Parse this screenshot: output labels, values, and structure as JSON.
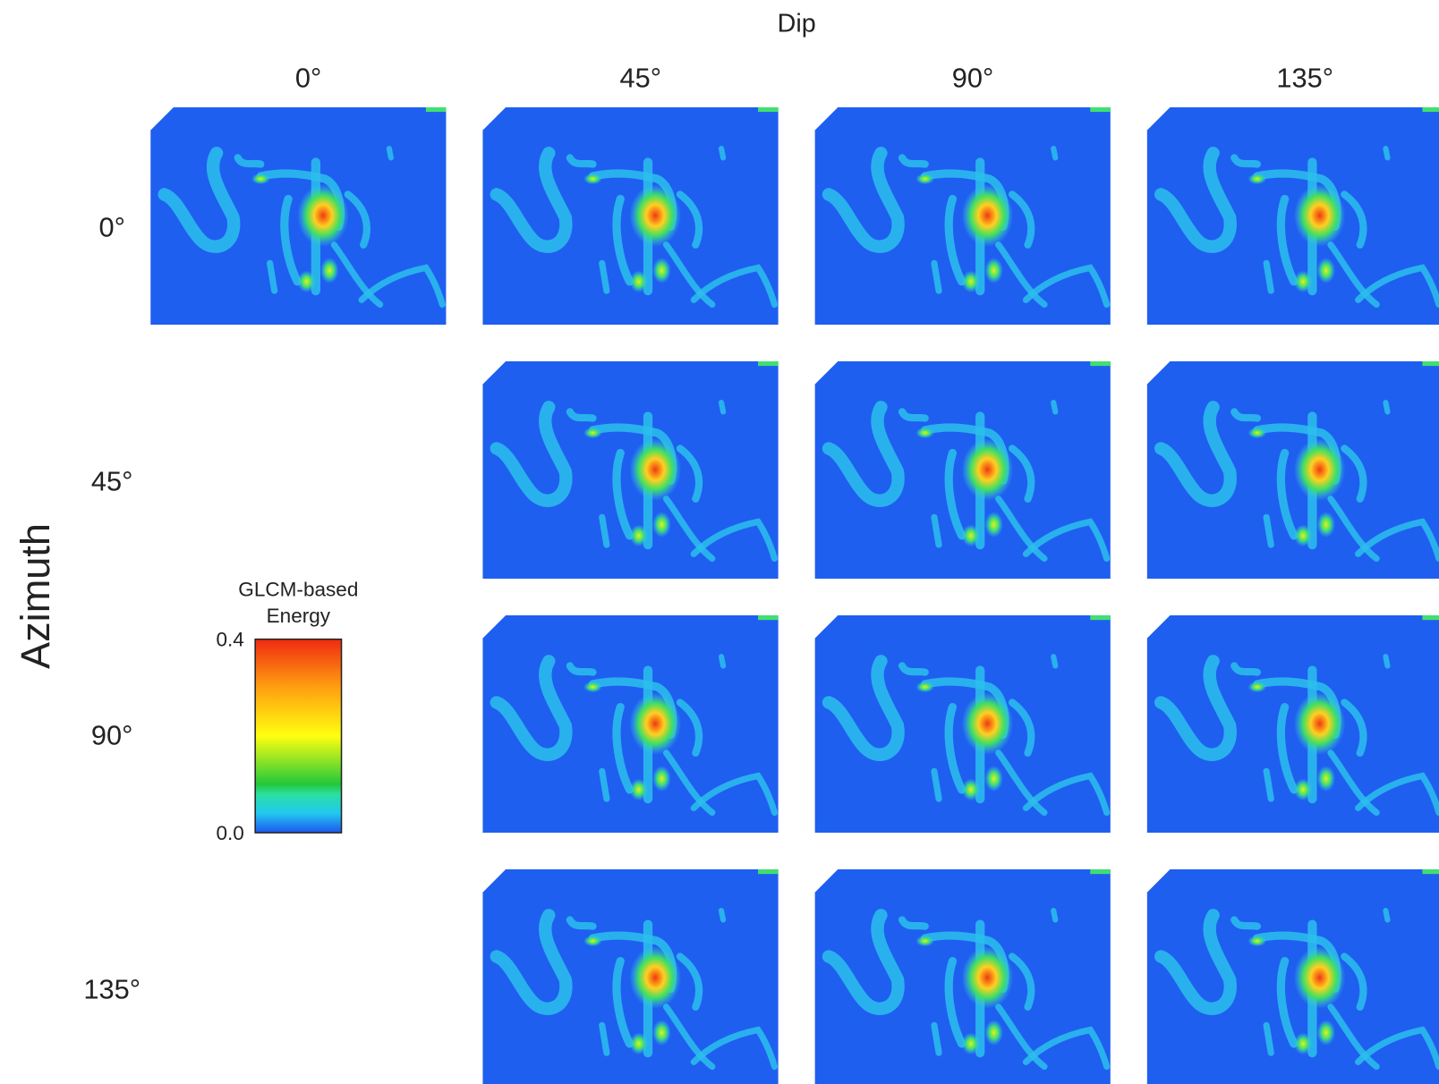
{
  "header": {
    "title": "Dip",
    "columns": [
      "0°",
      "45°",
      "90°",
      "135°"
    ]
  },
  "side": {
    "title": "Azimuth",
    "rows": [
      "0°",
      "45°",
      "90°",
      "135°"
    ]
  },
  "colorbar": {
    "title": [
      "GLCM-based",
      "Energy"
    ],
    "max": "0.4",
    "min": "0.0"
  }
}
